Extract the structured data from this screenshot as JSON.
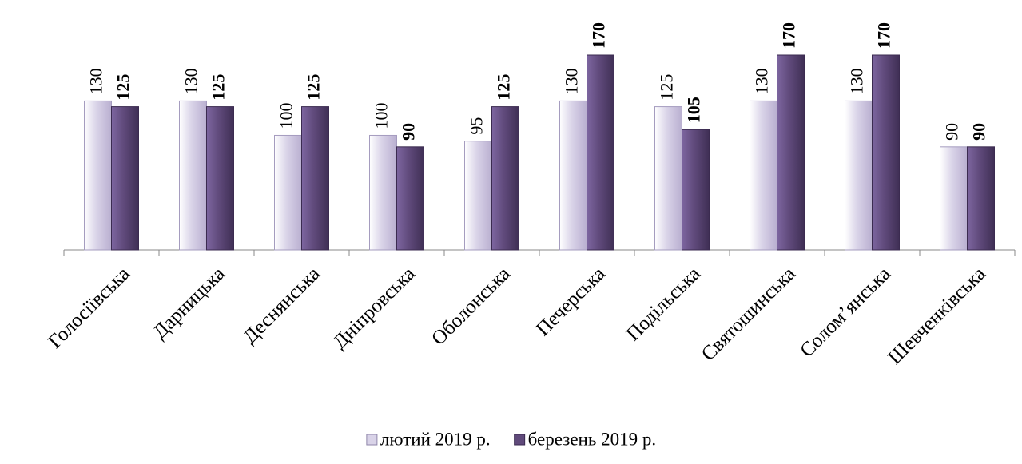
{
  "chart_data": {
    "type": "bar",
    "categories": [
      "Голосіївська",
      "Дарницька",
      "Деснянська",
      "Дніпровська",
      "Оболонська",
      "Печерська",
      "Подільська",
      "Святошинська",
      "Солом’янська",
      "Шевченківська"
    ],
    "series": [
      {
        "name": "лютий 2019 р.",
        "color": "#d9d3e8",
        "values": [
          130,
          130,
          100,
          100,
          95,
          130,
          125,
          130,
          130,
          90
        ]
      },
      {
        "name": "березень 2019 р.",
        "color": "#604a7b",
        "values": [
          125,
          125,
          125,
          90,
          125,
          170,
          105,
          170,
          170,
          90
        ]
      }
    ],
    "ylim": [
      0,
      170
    ],
    "legend": "bottom"
  }
}
